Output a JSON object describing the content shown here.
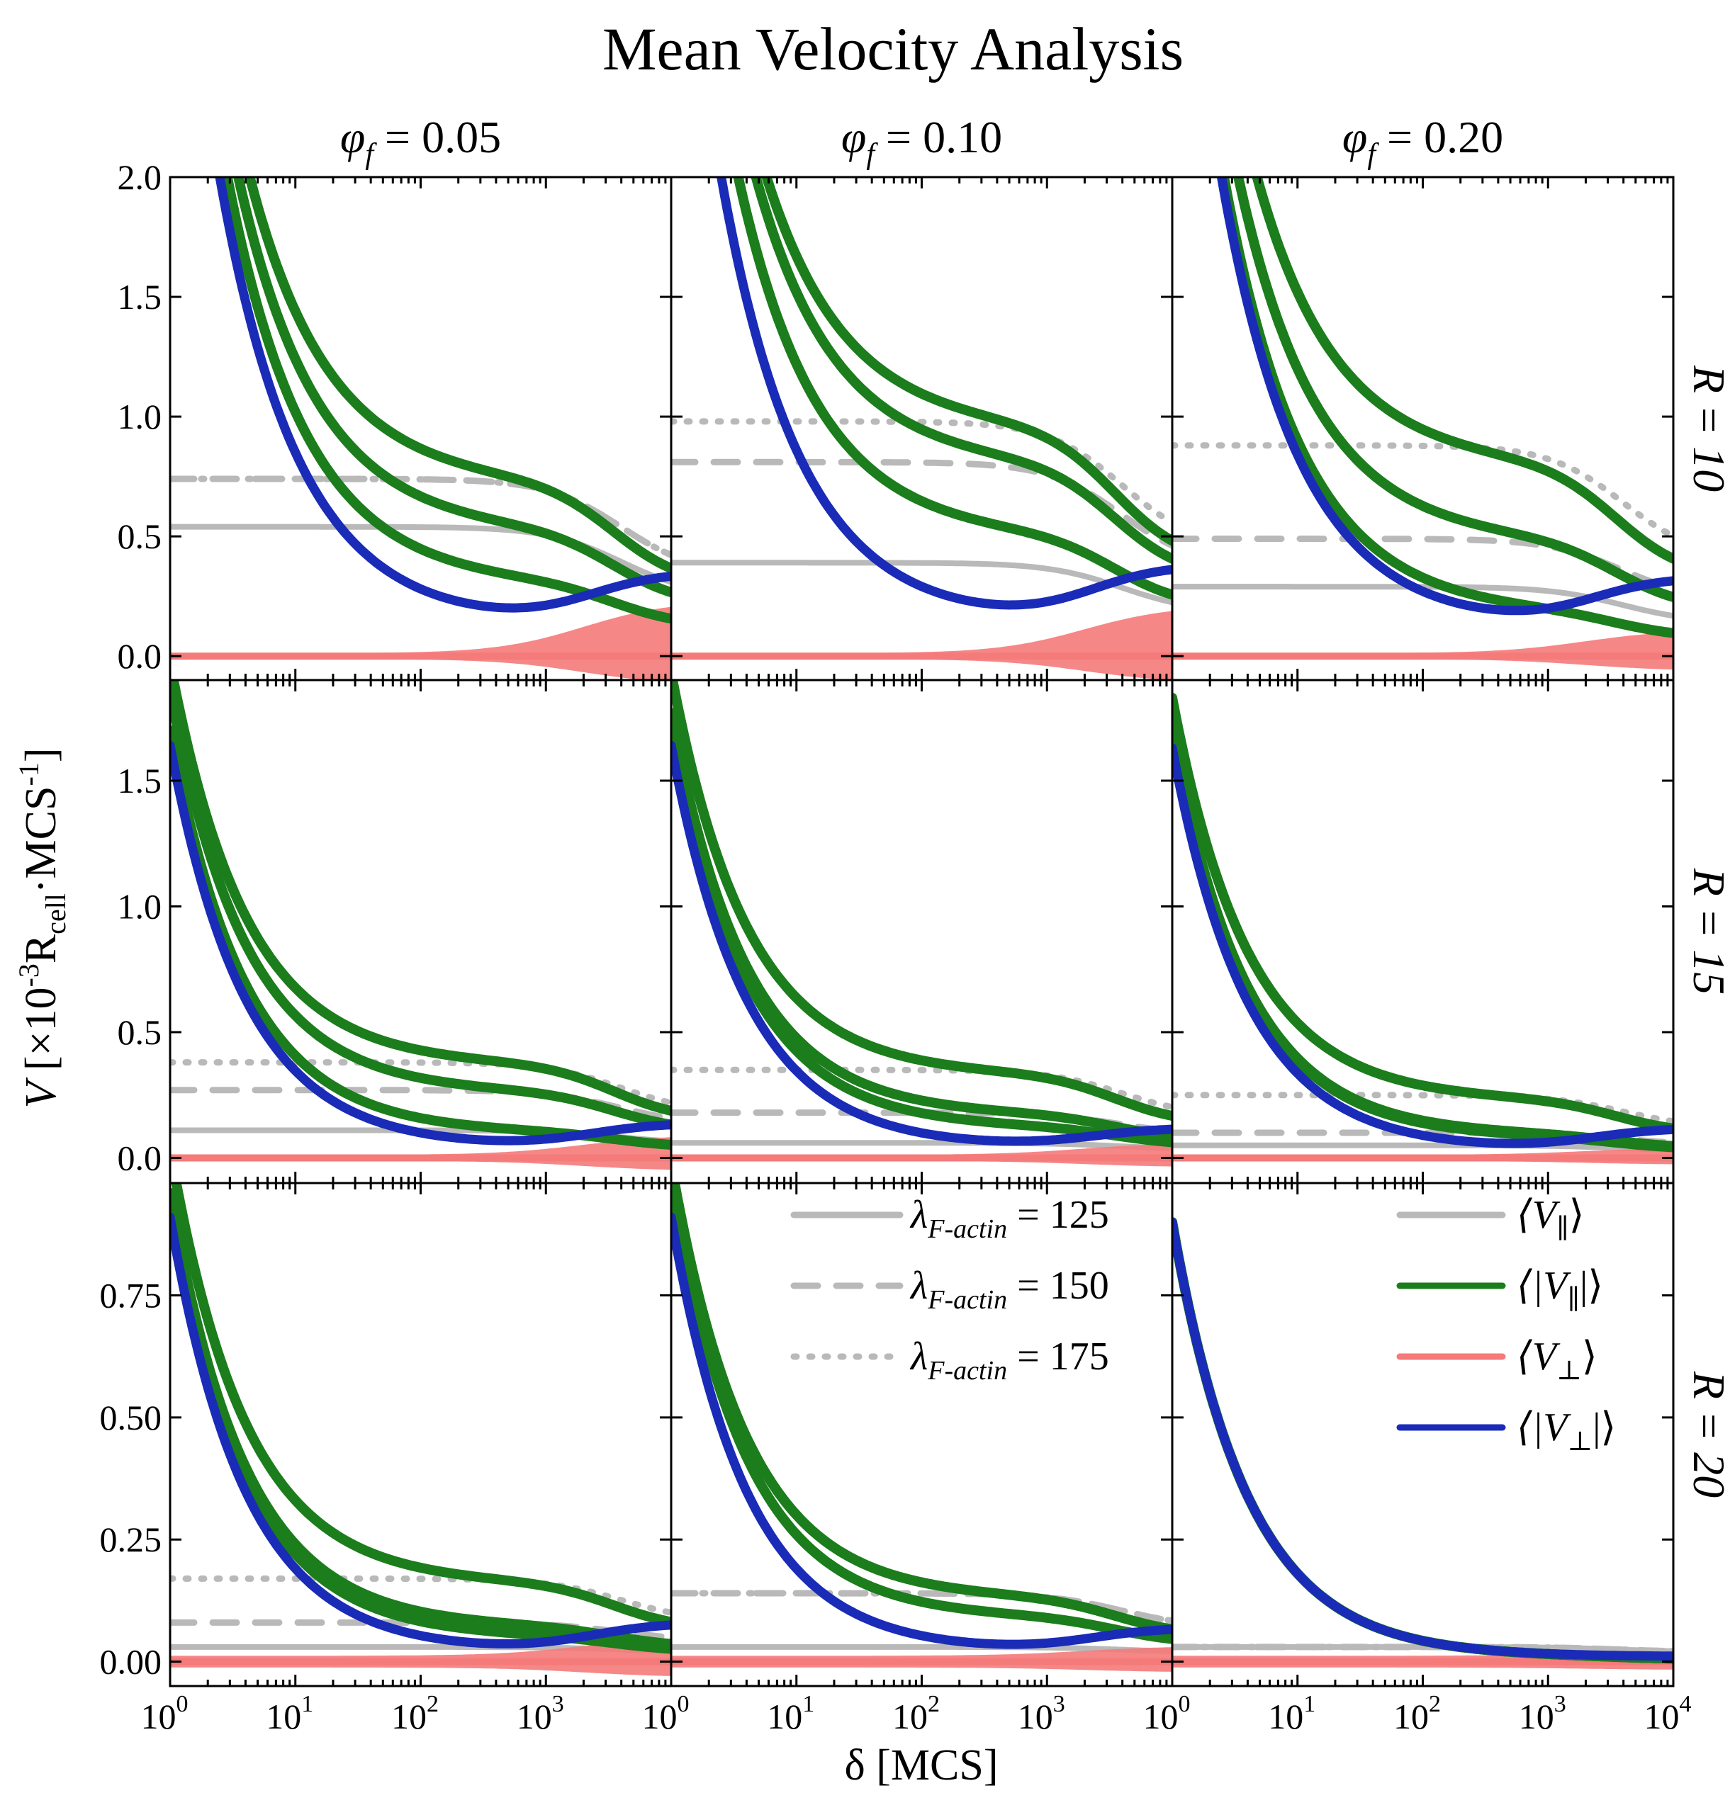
{
  "chart_data": {
    "type": "line",
    "title": "Mean Velocity Analysis",
    "layout": "3x3 grid; columns = phi_f, rows = R",
    "columns": [
      {
        "symbol": "φ",
        "sub": "f",
        "rest": " = 0.05"
      },
      {
        "symbol": "φ",
        "sub": "f",
        "rest": " = 0.10"
      },
      {
        "symbol": "φ",
        "sub": "f",
        "rest": " = 0.20"
      }
    ],
    "rows": [
      {
        "text": "R = 10",
        "ylim": [
          -0.1,
          2.0
        ],
        "yticks": [
          0.0,
          0.5,
          1.0,
          1.5,
          2.0
        ],
        "ylabels": [
          "0.0",
          "0.5",
          "1.0",
          "1.5",
          "2.0"
        ],
        "decay_start": 3.5,
        "decay_tau": 1.15
      },
      {
        "text": "R = 15",
        "ylim": [
          -0.1,
          1.9
        ],
        "yticks": [
          0.0,
          0.5,
          1.0,
          1.5
        ],
        "ylabels": [
          "0.0",
          "0.5",
          "1.0",
          "1.5"
        ],
        "decay_start": 1.6,
        "decay_tau": 1.1
      },
      {
        "text": "R = 20",
        "ylim": [
          -0.05,
          0.98
        ],
        "yticks": [
          0.0,
          0.25,
          0.5,
          0.75
        ],
        "ylabels": [
          "0.00",
          "0.25",
          "0.50",
          "0.75"
        ],
        "decay_start": 0.89,
        "decay_tau": 1.1
      }
    ],
    "x": {
      "label": "δ [MCS]",
      "scale": "log",
      "range": [
        1,
        10000
      ],
      "tick_base": "10",
      "tick_exponents": [
        "0",
        "1",
        "2",
        "3",
        "4"
      ]
    },
    "y": {
      "label_prefix": "V [×10",
      "label_exp": "-3",
      "label_mid": "R",
      "label_sub": "cell",
      "label_mid2": "·MCS",
      "label_exp2": "-1",
      "label_end": "]"
    },
    "colors": {
      "par": "#b9b9b9",
      "abspar": "#1b7d1b",
      "perp": "#f57a7a",
      "absperp": "#1a2bb8"
    },
    "legend_lambda": [
      {
        "sym": "λ",
        "sub": "F-actin",
        "rest": " = 125",
        "style": "solid"
      },
      {
        "sym": "λ",
        "sub": "F-actin",
        "rest": " = 150",
        "style": "dashed"
      },
      {
        "sym": "λ",
        "sub": "F-actin",
        "rest": " = 175",
        "style": "dotted"
      }
    ],
    "legend_quantities": [
      {
        "key": "par",
        "l": "⟨V",
        "sub": "∥",
        "r": "⟩"
      },
      {
        "key": "abspar",
        "l": "⟨|V",
        "sub": "∥",
        "r": "|⟩"
      },
      {
        "key": "perp",
        "l": "⟨V",
        "sub": "⊥",
        "r": "⟩"
      },
      {
        "key": "absperp",
        "l": "⟨|V",
        "sub": "⊥",
        "r": "|⟩"
      }
    ],
    "panels": [
      {
        "row": 0,
        "col": 0,
        "par": [
          0.53,
          0.73,
          0.73
        ],
        "abspar": [
          0.3,
          0.72,
          0.52
        ],
        "absperp_min": 0.13,
        "absperp_end": 0.35,
        "perp_spread": 0.22
      },
      {
        "row": 0,
        "col": 1,
        "par": [
          0.38,
          0.8,
          0.97
        ],
        "abspar": [
          0.5,
          0.95,
          0.8
        ],
        "absperp_min": 0.14,
        "absperp_end": 0.38,
        "perp_spread": 0.2
      },
      {
        "row": 0,
        "col": 2,
        "par": [
          0.28,
          0.48,
          0.87
        ],
        "abspar": [
          0.18,
          0.8,
          0.48
        ],
        "absperp_min": 0.12,
        "absperp_end": 0.33,
        "perp_spread": 0.1
      },
      {
        "row": 1,
        "col": 0,
        "par": [
          0.1,
          0.26,
          0.37
        ],
        "abspar": [
          0.1,
          0.37,
          0.26
        ],
        "absperp_min": 0.04,
        "absperp_end": 0.14,
        "perp_spread": 0.08
      },
      {
        "row": 1,
        "col": 1,
        "par": [
          0.05,
          0.17,
          0.34
        ],
        "abspar": [
          0.12,
          0.33,
          0.17
        ],
        "absperp_min": 0.04,
        "absperp_end": 0.12,
        "perp_spread": 0.05
      },
      {
        "row": 1,
        "col": 2,
        "par": [
          0.04,
          0.09,
          0.24
        ],
        "abspar": [
          0.08,
          0.23,
          0.09
        ],
        "absperp_min": 0.03,
        "absperp_end": 0.12,
        "perp_spread": 0.03
      },
      {
        "row": 2,
        "col": 0,
        "par": [
          0.02,
          0.07,
          0.16
        ],
        "abspar": [
          0.05,
          0.16,
          0.07
        ],
        "absperp_min": 0.02,
        "absperp_end": 0.08,
        "perp_spread": 0.04
      },
      {
        "row": 2,
        "col": 1,
        "par": [
          0.02,
          0.13,
          0.13
        ],
        "abspar": [
          0.09,
          0.13,
          0.13
        ],
        "absperp_min": 0.02,
        "absperp_end": 0.07,
        "perp_spread": 0.02
      },
      {
        "row": 2,
        "col": 2,
        "par": [
          0.02,
          0.02,
          0.02
        ],
        "abspar": [
          0.01,
          0.01,
          0.01
        ],
        "absperp_min": 0.01,
        "absperp_end": 0.01,
        "perp_spread": 0.01
      }
    ]
  }
}
